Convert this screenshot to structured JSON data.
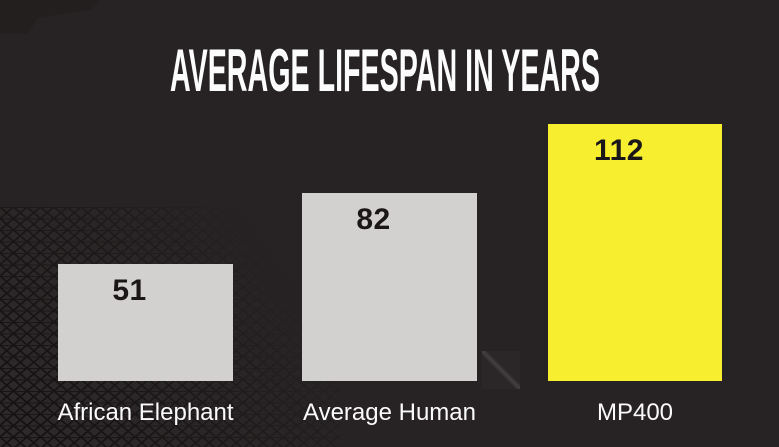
{
  "title": "AVERAGE LIFESPAN IN YEARS",
  "chart_data": {
    "type": "bar",
    "title": "AVERAGE LIFESPAN IN YEARS",
    "categories": [
      "African Elephant",
      "Average Human",
      "MP400"
    ],
    "values": [
      51,
      82,
      112
    ],
    "xlabel": "",
    "ylabel": "",
    "ylim": [
      0,
      130
    ],
    "grid": false,
    "legend_position": "none",
    "bar_colors": [
      "#d3d1d0",
      "#d3d1d0",
      "#f6ee2e"
    ],
    "value_label_color": "#1b1718",
    "category_label_color": "#fbfafa",
    "title_color": "#fcfcfc",
    "background_color": "#272324"
  }
}
